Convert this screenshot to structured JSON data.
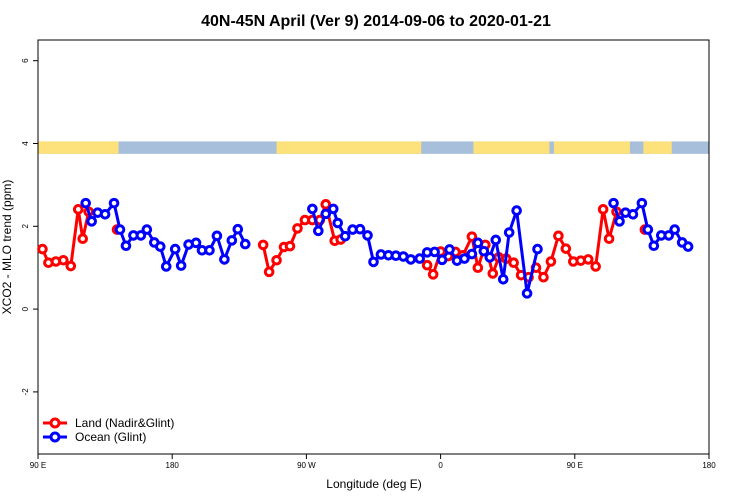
{
  "chart_data": {
    "type": "line",
    "title": "40N-45N April (Ver 9)   2014-09-06 to 2020-01-21",
    "xlabel": "Longitude (deg E)",
    "ylabel": "XCO2 - MLO trend (ppm)",
    "x_axis": {
      "range_deg_unwrapped": [
        90,
        540
      ],
      "ticks": [
        {
          "value": 90,
          "label": "90 E"
        },
        {
          "value": 180,
          "label": "180"
        },
        {
          "value": 270,
          "label": "90 W"
        },
        {
          "value": 360,
          "label": "0"
        },
        {
          "value": 450,
          "label": "90 E"
        },
        {
          "value": 540,
          "label": "180"
        }
      ]
    },
    "y_axis": {
      "range": [
        -3.5,
        6.5
      ],
      "ticks": [
        {
          "value": -2,
          "label": "-2"
        },
        {
          "value": 0,
          "label": "0"
        },
        {
          "value": 2,
          "label": "2"
        },
        {
          "value": 4,
          "label": "4"
        },
        {
          "value": 6,
          "label": "6"
        }
      ]
    },
    "grid": false,
    "legend_position": "bottom-left",
    "land_ocean_strip": {
      "y_range": [
        3.75,
        4.05
      ],
      "land_color": "#fde17a",
      "ocean_color": "#a7bfdb",
      "land_segments": [
        [
          90,
          144
        ],
        [
          250,
          347
        ],
        [
          382,
          433
        ],
        [
          436,
          487
        ],
        [
          496,
          515
        ]
      ]
    },
    "series": [
      {
        "name": "Land (Nadir&Glint)",
        "color": "#ff0000",
        "points": [
          [
            93,
            1.45
          ],
          [
            97,
            1.12
          ],
          [
            102,
            1.15
          ],
          [
            107,
            1.18
          ],
          [
            112,
            1.04
          ],
          [
            117,
            2.41
          ],
          [
            120,
            1.7
          ],
          [
            124,
            2.35
          ],
          [
            143,
            1.92
          ],
          [
            241,
            1.55
          ],
          [
            245,
            0.9
          ],
          [
            250,
            1.18
          ],
          [
            255,
            1.5
          ],
          [
            259,
            1.52
          ],
          [
            264,
            1.95
          ],
          [
            269,
            2.15
          ],
          [
            274,
            2.15
          ],
          [
            279,
            2.15
          ],
          [
            283,
            2.53
          ],
          [
            289,
            1.65
          ],
          [
            293,
            1.68
          ],
          [
            351,
            1.06
          ],
          [
            355,
            0.84
          ],
          [
            360,
            1.39
          ],
          [
            365,
            1.28
          ],
          [
            370,
            1.38
          ],
          [
            375,
            1.3
          ],
          [
            381,
            1.75
          ],
          [
            385,
            1.0
          ],
          [
            390,
            1.55
          ],
          [
            395,
            0.86
          ],
          [
            399,
            1.25
          ],
          [
            404,
            1.22
          ],
          [
            409,
            1.12
          ],
          [
            414,
            0.82
          ],
          [
            419,
            0.77
          ],
          [
            424,
            1.0
          ],
          [
            429,
            0.77
          ],
          [
            434,
            1.15
          ],
          [
            439,
            1.77
          ],
          [
            444,
            1.46
          ],
          [
            449,
            1.15
          ],
          [
            454,
            1.17
          ],
          [
            459,
            1.2
          ],
          [
            464,
            1.03
          ],
          [
            469,
            2.41
          ],
          [
            473,
            1.7
          ],
          [
            478,
            2.35
          ],
          [
            497,
            1.92
          ]
        ]
      },
      {
        "name": "Ocean (Glint)",
        "color": "#0000ff",
        "points": [
          [
            122,
            2.56
          ],
          [
            126,
            2.12
          ],
          [
            130,
            2.33
          ],
          [
            135,
            2.29
          ],
          [
            141,
            2.56
          ],
          [
            145,
            1.92
          ],
          [
            149,
            1.53
          ],
          [
            154,
            1.78
          ],
          [
            159,
            1.78
          ],
          [
            163,
            1.92
          ],
          [
            168,
            1.61
          ],
          [
            172,
            1.51
          ],
          [
            176,
            1.03
          ],
          [
            182,
            1.45
          ],
          [
            186,
            1.05
          ],
          [
            191,
            1.56
          ],
          [
            196,
            1.6
          ],
          [
            200,
            1.42
          ],
          [
            205,
            1.42
          ],
          [
            210,
            1.77
          ],
          [
            215,
            1.2
          ],
          [
            220,
            1.66
          ],
          [
            224,
            1.93
          ],
          [
            229,
            1.57
          ],
          [
            274,
            2.42
          ],
          [
            278,
            1.89
          ],
          [
            283,
            2.3
          ],
          [
            288,
            2.42
          ],
          [
            291,
            2.08
          ],
          [
            296,
            1.76
          ],
          [
            301,
            1.92
          ],
          [
            306,
            1.93
          ],
          [
            311,
            1.78
          ],
          [
            315,
            1.14
          ],
          [
            320,
            1.32
          ],
          [
            325,
            1.3
          ],
          [
            330,
            1.29
          ],
          [
            335,
            1.27
          ],
          [
            340,
            1.2
          ],
          [
            346,
            1.22
          ],
          [
            351,
            1.37
          ],
          [
            356,
            1.38
          ],
          [
            361,
            1.19
          ],
          [
            366,
            1.44
          ],
          [
            371,
            1.17
          ],
          [
            376,
            1.22
          ],
          [
            381,
            1.33
          ],
          [
            385,
            1.6
          ],
          [
            389,
            1.4
          ],
          [
            393,
            1.25
          ],
          [
            397,
            1.67
          ],
          [
            402,
            0.72
          ],
          [
            406,
            1.85
          ],
          [
            411,
            2.38
          ],
          [
            418,
            0.38
          ],
          [
            425,
            1.45
          ],
          [
            476,
            2.56
          ],
          [
            480,
            2.12
          ],
          [
            484,
            2.33
          ],
          [
            489,
            2.29
          ],
          [
            495,
            2.56
          ],
          [
            499,
            1.92
          ],
          [
            503,
            1.53
          ],
          [
            508,
            1.78
          ],
          [
            513,
            1.78
          ],
          [
            517,
            1.92
          ],
          [
            522,
            1.61
          ],
          [
            526,
            1.51
          ]
        ]
      }
    ]
  }
}
